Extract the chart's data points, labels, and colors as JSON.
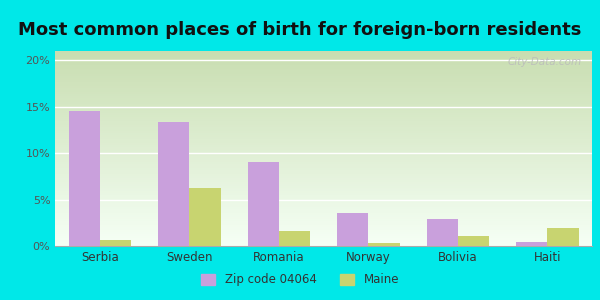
{
  "title": "Most common places of birth for foreign-born residents",
  "categories": [
    "Serbia",
    "Sweden",
    "Romania",
    "Norway",
    "Bolivia",
    "Haiti"
  ],
  "zip_values": [
    14.5,
    13.3,
    9.1,
    3.6,
    2.9,
    0.4
  ],
  "maine_values": [
    0.7,
    6.3,
    1.6,
    0.3,
    1.1,
    1.9
  ],
  "zip_color": "#c9a0dc",
  "maine_color": "#c8d470",
  "ylim": [
    0,
    21
  ],
  "yticks": [
    0,
    5,
    10,
    15,
    20
  ],
  "ytick_labels": [
    "0%",
    "5%",
    "10%",
    "15%",
    "20%"
  ],
  "legend_zip": "Zip code 04064",
  "legend_maine": "Maine",
  "bg_outer": "#00e8e8",
  "bg_inner_top": "#f5fff5",
  "bg_inner_bottom": "#c8ddb0",
  "watermark": "City-Data.com",
  "title_fontsize": 13,
  "bar_width": 0.35
}
